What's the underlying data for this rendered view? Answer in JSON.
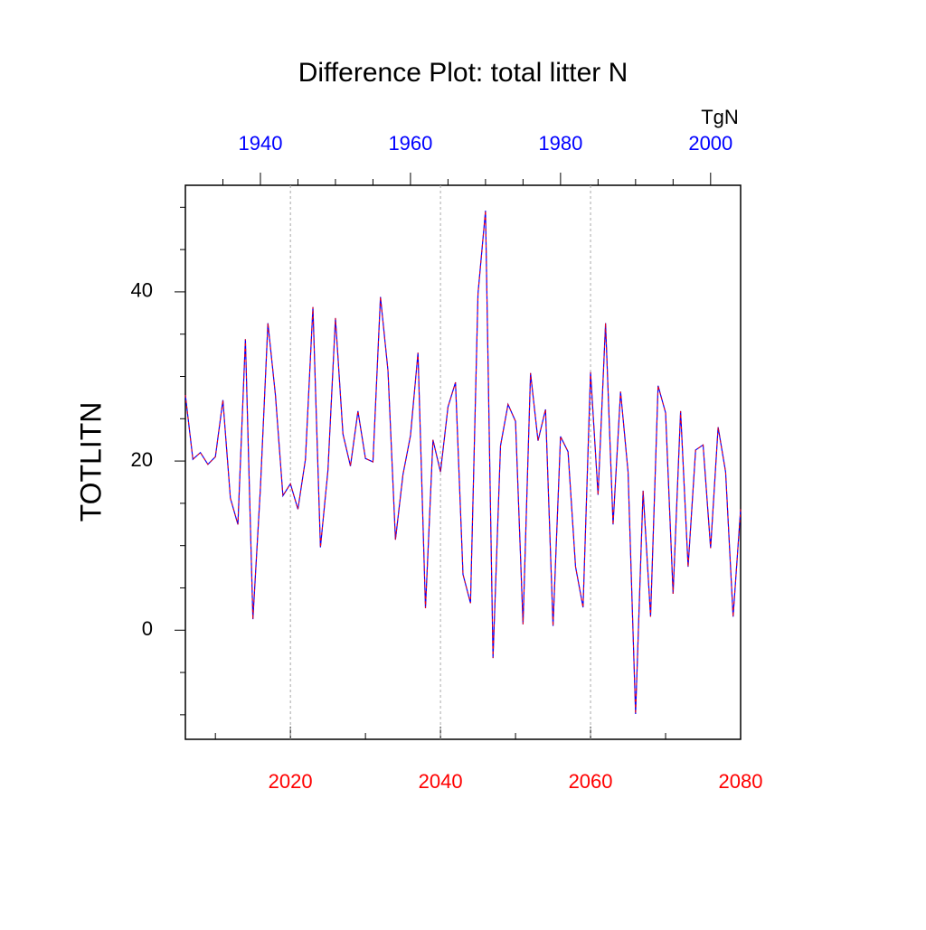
{
  "chart_data": {
    "type": "line",
    "title": "Difference Plot: total litter N",
    "y_label": "TOTLITN",
    "x2_label": "TgN",
    "x": [
      2006,
      2007,
      2008,
      2009,
      2010,
      2011,
      2012,
      2013,
      2014,
      2015,
      2016,
      2017,
      2018,
      2019,
      2020,
      2021,
      2022,
      2023,
      2024,
      2025,
      2026,
      2027,
      2028,
      2029,
      2030,
      2031,
      2032,
      2033,
      2034,
      2035,
      2036,
      2037,
      2038,
      2039,
      2040,
      2041,
      2042,
      2043,
      2044,
      2045,
      2046,
      2047,
      2048,
      2049,
      2050,
      2051,
      2052,
      2053,
      2054,
      2055,
      2056,
      2057,
      2058,
      2059,
      2060,
      2061,
      2062,
      2063,
      2064,
      2065,
      2066,
      2067,
      2068,
      2069,
      2070,
      2071,
      2072,
      2073,
      2074,
      2075,
      2076,
      2077,
      2078,
      2079,
      2080
    ],
    "series": [
      {
        "color": "#0000ff",
        "dash_color": "#ff0000",
        "values": [
          27.8,
          20.2,
          21.0,
          19.6,
          20.5,
          27.2,
          15.6,
          12.5,
          34.4,
          1.3,
          16.8,
          36.3,
          27.8,
          15.9,
          17.3,
          14.3,
          20.2,
          38.2,
          9.8,
          18.9,
          36.9,
          23.2,
          19.4,
          25.9,
          20.3,
          19.9,
          39.4,
          30.7,
          10.7,
          18.4,
          23.0,
          32.8,
          2.6,
          22.5,
          18.7,
          26.4,
          29.3,
          6.6,
          3.2,
          39.8,
          49.6,
          -3.3,
          21.8,
          26.7,
          24.7,
          0.7,
          30.4,
          22.4,
          26.1,
          0.5,
          22.9,
          21.1,
          7.5,
          2.7,
          30.5,
          16.0,
          36.3,
          12.5,
          28.2,
          18.7,
          -9.9,
          16.5,
          1.6,
          28.9,
          25.7,
          4.3,
          25.9,
          7.5,
          21.3,
          21.9,
          9.7,
          24.0,
          18.7,
          1.6,
          14.3
        ]
      }
    ],
    "xlim": [
      2006,
      2080
    ],
    "xticks": [
      2020,
      2040,
      2060,
      2080
    ],
    "xminorticks": [
      2010,
      2030,
      2050,
      2070
    ],
    "xtick_color": "#ff0000",
    "x2lim": [
      1930,
      2004
    ],
    "x2ticks": [
      1940,
      1960,
      1980,
      2000
    ],
    "x2minorticks": [
      1935,
      1945,
      1950,
      1955,
      1965,
      1970,
      1975,
      1985,
      1990,
      1995
    ],
    "x2tick_color": "#0000ff",
    "ylim": [
      -12.9,
      52.6
    ],
    "yticks": [
      0,
      20,
      40
    ],
    "yminorticks": [
      -10,
      -5,
      5,
      10,
      15,
      25,
      30,
      35,
      45,
      50
    ],
    "grid": true
  }
}
